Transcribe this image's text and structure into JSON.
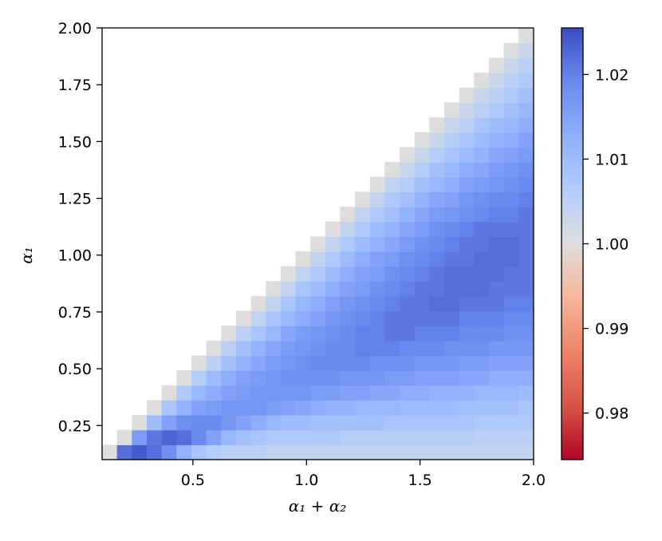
{
  "chart_data": {
    "type": "heatmap",
    "title": "",
    "xlabel": "α₁ + α₂",
    "ylabel": "α₁",
    "xlim": [
      0.1,
      2.0
    ],
    "ylim": [
      0.1,
      2.0
    ],
    "x_ticks": [
      "0.5",
      "1.0",
      "1.5",
      "2.0"
    ],
    "y_ticks": [
      "0.25",
      "0.50",
      "0.75",
      "1.00",
      "1.25",
      "1.50",
      "1.75",
      "2.00"
    ],
    "cell_size": 0.0655,
    "grid": false,
    "colorbar": {
      "colormap": "coolwarm",
      "range": [
        0.9745,
        1.0255
      ],
      "ticks": [
        "0.98",
        "0.99",
        "1.00",
        "1.01",
        "1.02"
      ],
      "colors": {
        "low": "#b40426",
        "mid": "#dddddd",
        "high": "#3b4cc0"
      }
    },
    "values": [
      [
        1.0,
        1.022,
        1.024,
        1.022,
        1.018,
        1.012,
        1.008,
        1.006,
        1.005,
        1.005,
        1.005,
        1.004,
        1.004,
        1.004,
        1.004,
        1.004,
        1.004,
        1.004,
        1.004,
        1.004,
        1.004,
        1.004,
        1.004,
        1.004,
        1.004,
        1.004,
        1.004,
        1.004,
        1.004
      ],
      [
        null,
        1.0,
        1.016,
        1.021,
        1.023,
        1.022,
        1.019,
        1.015,
        1.011,
        1.009,
        1.008,
        1.007,
        1.007,
        1.007,
        1.007,
        1.007,
        1.006,
        1.006,
        1.006,
        1.006,
        1.006,
        1.006,
        1.006,
        1.006,
        1.006,
        1.005,
        1.005,
        1.005,
        1.005
      ],
      [
        null,
        null,
        1.0,
        1.01,
        1.015,
        1.018,
        1.019,
        1.019,
        1.017,
        1.015,
        1.013,
        1.011,
        1.01,
        1.01,
        1.009,
        1.009,
        1.009,
        1.009,
        1.009,
        1.008,
        1.008,
        1.008,
        1.008,
        1.008,
        1.008,
        1.007,
        1.007,
        1.007,
        1.007
      ],
      [
        null,
        null,
        null,
        1.0,
        1.008,
        1.012,
        1.015,
        1.016,
        1.017,
        1.017,
        1.017,
        1.016,
        1.015,
        1.014,
        1.013,
        1.012,
        1.012,
        1.011,
        1.011,
        1.011,
        1.01,
        1.01,
        1.01,
        1.01,
        1.009,
        1.009,
        1.009,
        1.009,
        1.008
      ],
      [
        null,
        null,
        null,
        null,
        1.0,
        1.007,
        1.011,
        1.013,
        1.015,
        1.016,
        1.017,
        1.017,
        1.017,
        1.017,
        1.016,
        1.016,
        1.015,
        1.015,
        1.014,
        1.014,
        1.013,
        1.013,
        1.012,
        1.012,
        1.012,
        1.011,
        1.011,
        1.011,
        1.01
      ],
      [
        null,
        null,
        null,
        null,
        null,
        1.0,
        1.006,
        1.01,
        1.013,
        1.015,
        1.016,
        1.017,
        1.018,
        1.018,
        1.018,
        1.018,
        1.017,
        1.017,
        1.017,
        1.016,
        1.016,
        1.015,
        1.015,
        1.015,
        1.014,
        1.014,
        1.013,
        1.013,
        1.013
      ],
      [
        null,
        null,
        null,
        null,
        null,
        null,
        1.0,
        1.005,
        1.009,
        1.012,
        1.014,
        1.016,
        1.017,
        1.018,
        1.019,
        1.019,
        1.019,
        1.019,
        1.018,
        1.018,
        1.018,
        1.017,
        1.017,
        1.017,
        1.016,
        1.016,
        1.015,
        1.015,
        1.015
      ],
      [
        null,
        null,
        null,
        null,
        null,
        null,
        null,
        1.0,
        1.005,
        1.009,
        1.012,
        1.014,
        1.016,
        1.017,
        1.018,
        1.019,
        1.019,
        1.02,
        1.02,
        1.02,
        1.019,
        1.019,
        1.019,
        1.018,
        1.018,
        1.018,
        1.017,
        1.017,
        1.017
      ],
      [
        null,
        null,
        null,
        null,
        null,
        null,
        null,
        null,
        1.0,
        1.005,
        1.008,
        1.011,
        1.014,
        1.016,
        1.017,
        1.018,
        1.019,
        1.02,
        1.02,
        1.021,
        1.021,
        1.02,
        1.02,
        1.02,
        1.019,
        1.019,
        1.019,
        1.018,
        1.018
      ],
      [
        null,
        null,
        null,
        null,
        null,
        null,
        null,
        null,
        null,
        1.0,
        1.004,
        1.008,
        1.011,
        1.013,
        1.015,
        1.017,
        1.018,
        1.019,
        1.02,
        1.021,
        1.021,
        1.021,
        1.021,
        1.021,
        1.02,
        1.02,
        1.02,
        1.019,
        1.019
      ],
      [
        null,
        null,
        null,
        null,
        null,
        null,
        null,
        null,
        null,
        null,
        1.0,
        1.004,
        1.008,
        1.011,
        1.013,
        1.015,
        1.017,
        1.018,
        1.019,
        1.02,
        1.021,
        1.021,
        1.022,
        1.022,
        1.021,
        1.021,
        1.021,
        1.02,
        1.02
      ],
      [
        null,
        null,
        null,
        null,
        null,
        null,
        null,
        null,
        null,
        null,
        null,
        1.0,
        1.004,
        1.008,
        1.01,
        1.013,
        1.015,
        1.016,
        1.018,
        1.019,
        1.02,
        1.021,
        1.021,
        1.022,
        1.022,
        1.022,
        1.021,
        1.021,
        1.021
      ],
      [
        null,
        null,
        null,
        null,
        null,
        null,
        null,
        null,
        null,
        null,
        null,
        null,
        1.0,
        1.004,
        1.007,
        1.01,
        1.013,
        1.015,
        1.016,
        1.018,
        1.019,
        1.02,
        1.021,
        1.022,
        1.022,
        1.022,
        1.022,
        1.021,
        1.021
      ],
      [
        null,
        null,
        null,
        null,
        null,
        null,
        null,
        null,
        null,
        null,
        null,
        null,
        null,
        1.0,
        1.004,
        1.007,
        1.01,
        1.013,
        1.015,
        1.016,
        1.018,
        1.019,
        1.02,
        1.021,
        1.021,
        1.022,
        1.022,
        1.022,
        1.021
      ],
      [
        null,
        null,
        null,
        null,
        null,
        null,
        null,
        null,
        null,
        null,
        null,
        null,
        null,
        null,
        1.0,
        1.004,
        1.007,
        1.01,
        1.012,
        1.014,
        1.016,
        1.018,
        1.019,
        1.02,
        1.021,
        1.021,
        1.022,
        1.022,
        1.021
      ],
      [
        null,
        null,
        null,
        null,
        null,
        null,
        null,
        null,
        null,
        null,
        null,
        null,
        null,
        null,
        null,
        1.0,
        1.004,
        1.007,
        1.01,
        1.012,
        1.014,
        1.016,
        1.018,
        1.019,
        1.02,
        1.021,
        1.021,
        1.021,
        1.021
      ],
      [
        null,
        null,
        null,
        null,
        null,
        null,
        null,
        null,
        null,
        null,
        null,
        null,
        null,
        null,
        null,
        null,
        1.0,
        1.004,
        1.007,
        1.009,
        1.012,
        1.014,
        1.016,
        1.017,
        1.018,
        1.019,
        1.02,
        1.02,
        1.021
      ],
      [
        null,
        null,
        null,
        null,
        null,
        null,
        null,
        null,
        null,
        null,
        null,
        null,
        null,
        null,
        null,
        null,
        null,
        1.0,
        1.004,
        1.007,
        1.009,
        1.012,
        1.014,
        1.015,
        1.017,
        1.018,
        1.019,
        1.019,
        1.02
      ],
      [
        null,
        null,
        null,
        null,
        null,
        null,
        null,
        null,
        null,
        null,
        null,
        null,
        null,
        null,
        null,
        null,
        null,
        null,
        1.0,
        1.004,
        1.006,
        1.009,
        1.011,
        1.013,
        1.015,
        1.016,
        1.017,
        1.018,
        1.019
      ],
      [
        null,
        null,
        null,
        null,
        null,
        null,
        null,
        null,
        null,
        null,
        null,
        null,
        null,
        null,
        null,
        null,
        null,
        null,
        null,
        1.0,
        1.003,
        1.006,
        1.009,
        1.011,
        1.013,
        1.014,
        1.016,
        1.017,
        1.018
      ],
      [
        null,
        null,
        null,
        null,
        null,
        null,
        null,
        null,
        null,
        null,
        null,
        null,
        null,
        null,
        null,
        null,
        null,
        null,
        null,
        null,
        1.0,
        1.003,
        1.006,
        1.008,
        1.01,
        1.012,
        1.014,
        1.015,
        1.016
      ],
      [
        null,
        null,
        null,
        null,
        null,
        null,
        null,
        null,
        null,
        null,
        null,
        null,
        null,
        null,
        null,
        null,
        null,
        null,
        null,
        null,
        null,
        1.0,
        1.003,
        1.006,
        1.008,
        1.01,
        1.012,
        1.013,
        1.015
      ],
      [
        null,
        null,
        null,
        null,
        null,
        null,
        null,
        null,
        null,
        null,
        null,
        null,
        null,
        null,
        null,
        null,
        null,
        null,
        null,
        null,
        null,
        null,
        1.0,
        1.003,
        1.005,
        1.008,
        1.01,
        1.011,
        1.013
      ],
      [
        null,
        null,
        null,
        null,
        null,
        null,
        null,
        null,
        null,
        null,
        null,
        null,
        null,
        null,
        null,
        null,
        null,
        null,
        null,
        null,
        null,
        null,
        null,
        1.0,
        1.003,
        1.005,
        1.007,
        1.009,
        1.011
      ],
      [
        null,
        null,
        null,
        null,
        null,
        null,
        null,
        null,
        null,
        null,
        null,
        null,
        null,
        null,
        null,
        null,
        null,
        null,
        null,
        null,
        null,
        null,
        null,
        null,
        1.0,
        1.003,
        1.005,
        1.007,
        1.009
      ],
      [
        null,
        null,
        null,
        null,
        null,
        null,
        null,
        null,
        null,
        null,
        null,
        null,
        null,
        null,
        null,
        null,
        null,
        null,
        null,
        null,
        null,
        null,
        null,
        null,
        null,
        1.0,
        1.003,
        1.005,
        1.007
      ],
      [
        null,
        null,
        null,
        null,
        null,
        null,
        null,
        null,
        null,
        null,
        null,
        null,
        null,
        null,
        null,
        null,
        null,
        null,
        null,
        null,
        null,
        null,
        null,
        null,
        null,
        null,
        1.0,
        1.003,
        1.005
      ],
      [
        null,
        null,
        null,
        null,
        null,
        null,
        null,
        null,
        null,
        null,
        null,
        null,
        null,
        null,
        null,
        null,
        null,
        null,
        null,
        null,
        null,
        null,
        null,
        null,
        null,
        null,
        null,
        1.0,
        1.003
      ],
      [
        null,
        null,
        null,
        null,
        null,
        null,
        null,
        null,
        null,
        null,
        null,
        null,
        null,
        null,
        null,
        null,
        null,
        null,
        null,
        null,
        null,
        null,
        null,
        null,
        null,
        null,
        null,
        null,
        1.0
      ]
    ]
  }
}
